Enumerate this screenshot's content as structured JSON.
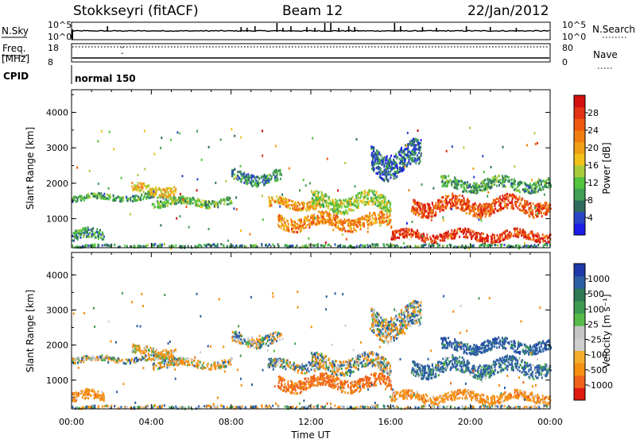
{
  "header": {
    "station": "Stokkseyri (fitACF)",
    "beam": "Beam 12",
    "date": "22/Jan/2012"
  },
  "top_panels": {
    "nsky_label": "N.Sky",
    "nsky_ticks": [
      "10^5",
      "10^0"
    ],
    "nsearch_label": "N.Search",
    "nsearch_ticks": [
      "10^5",
      "10^0"
    ],
    "freq_label": "Freq.",
    "freq_unit": "[MHz]",
    "freq_ticks": [
      "18",
      "8"
    ],
    "nave_label": "Nave",
    "nave_ticks": [
      "80",
      "0"
    ],
    "cpid_label": "CPID",
    "cpid_value": "normal 150"
  },
  "colors": {
    "power_scale": [
      "#1d1de8",
      "#2a44c8",
      "#2f6c5e",
      "#3f9f57",
      "#52c43d",
      "#a9cc3a",
      "#f2c21a",
      "#f0a014",
      "#f07d10",
      "#ef5a10",
      "#e23214",
      "#d41010"
    ],
    "velocity_scale": [
      "#e01a10",
      "#f0621b",
      "#f59010",
      "#f5ae2c",
      "#cfcfcf",
      "#c5c5c5",
      "#57bb4a",
      "#3d9a52",
      "#2f7a55",
      "#2c5fa3",
      "#1e3aa8"
    ]
  },
  "chart_data": [
    {
      "type": "heatmap",
      "name": "power",
      "xlabel": "",
      "ylabel": "Slant Range [km]",
      "x_ticks": [
        "00:00",
        "04:00",
        "08:00",
        "12:00",
        "16:00",
        "20:00",
        "00:00"
      ],
      "y_ticks": [
        "1000",
        "2000",
        "3000",
        "4000"
      ],
      "ylim": [
        180,
        4640
      ],
      "xlim_hours": [
        0,
        24
      ],
      "colorbar": {
        "label": "Power [dB]",
        "ticks": [
          "4",
          "8",
          "12",
          "16",
          "20",
          "24",
          "28"
        ],
        "range": [
          0,
          32
        ]
      },
      "features": [
        {
          "t0": 0.0,
          "t1": 5.8,
          "r0": 1480,
          "r1": 1780,
          "value": 10
        },
        {
          "t0": 0.0,
          "t1": 1.6,
          "r0": 300,
          "r1": 820,
          "value": 9
        },
        {
          "t0": 3.0,
          "t1": 5.2,
          "r0": 1600,
          "r1": 2100,
          "value": 18
        },
        {
          "t0": 4.0,
          "t1": 8.0,
          "r0": 1300,
          "r1": 1700,
          "value": 12
        },
        {
          "t0": 8.0,
          "t1": 10.5,
          "r0": 1900,
          "r1": 2500,
          "value": 8
        },
        {
          "t0": 9.8,
          "t1": 12.5,
          "r0": 1200,
          "r1": 1700,
          "value": 20
        },
        {
          "t0": 10.3,
          "t1": 16.0,
          "r0": 600,
          "r1": 1300,
          "value": 22
        },
        {
          "t0": 12.0,
          "t1": 16.0,
          "r0": 1100,
          "r1": 1900,
          "value": 14
        },
        {
          "t0": 15.0,
          "t1": 17.5,
          "r0": 2000,
          "r1": 3400,
          "value": 6
        },
        {
          "t0": 16.0,
          "t1": 24.0,
          "r0": 300,
          "r1": 800,
          "value": 28
        },
        {
          "t0": 17.0,
          "t1": 24.0,
          "r0": 1000,
          "r1": 1800,
          "value": 26
        },
        {
          "t0": 18.5,
          "t1": 24.0,
          "r0": 1700,
          "r1": 2300,
          "value": 10
        },
        {
          "t0": 0.0,
          "t1": 24.0,
          "r0": 200,
          "r1": 330,
          "value": 9
        }
      ]
    },
    {
      "type": "heatmap",
      "name": "velocity",
      "xlabel": "Time UT",
      "ylabel": "Slant Range [km]",
      "x_ticks": [
        "00:00",
        "04:00",
        "08:00",
        "12:00",
        "16:00",
        "20:00",
        "00:00"
      ],
      "y_ticks": [
        "1000",
        "2000",
        "3000",
        "4000"
      ],
      "ylim": [
        180,
        4640
      ],
      "xlim_hours": [
        0,
        24
      ],
      "colorbar": {
        "label": "Velocity [m s⁻¹]",
        "ticks": [
          "1000",
          "500",
          "100",
          "25",
          "-25",
          "-100",
          "-500",
          "-1000"
        ],
        "range": [
          -1000,
          1000
        ]
      },
      "features": [
        {
          "t0": 0.0,
          "t1": 5.8,
          "r0": 1480,
          "r1": 1780,
          "value": 0
        },
        {
          "t0": 0.0,
          "t1": 1.6,
          "r0": 300,
          "r1": 820,
          "value": -300
        },
        {
          "t0": 3.0,
          "t1": 5.2,
          "r0": 1600,
          "r1": 2100,
          "value": -150
        },
        {
          "t0": 4.0,
          "t1": 8.0,
          "r0": 1300,
          "r1": 1700,
          "value": -100
        },
        {
          "t0": 8.0,
          "t1": 10.5,
          "r0": 1900,
          "r1": 2500,
          "value": 0
        },
        {
          "t0": 9.8,
          "t1": 12.5,
          "r0": 1200,
          "r1": 1700,
          "value": 0
        },
        {
          "t0": 10.3,
          "t1": 16.0,
          "r0": 600,
          "r1": 1300,
          "value": -600
        },
        {
          "t0": 12.0,
          "t1": 16.0,
          "r0": 1100,
          "r1": 1900,
          "value": 0
        },
        {
          "t0": 15.0,
          "t1": 17.5,
          "r0": 2000,
          "r1": 3400,
          "value": 0
        },
        {
          "t0": 16.0,
          "t1": 24.0,
          "r0": 300,
          "r1": 800,
          "value": -300
        },
        {
          "t0": 17.0,
          "t1": 24.0,
          "r0": 1000,
          "r1": 1800,
          "value": 200
        },
        {
          "t0": 18.5,
          "t1": 24.0,
          "r0": 1700,
          "r1": 2300,
          "value": 300
        },
        {
          "t0": 0.0,
          "t1": 24.0,
          "r0": 200,
          "r1": 330,
          "value": 0
        }
      ]
    }
  ]
}
